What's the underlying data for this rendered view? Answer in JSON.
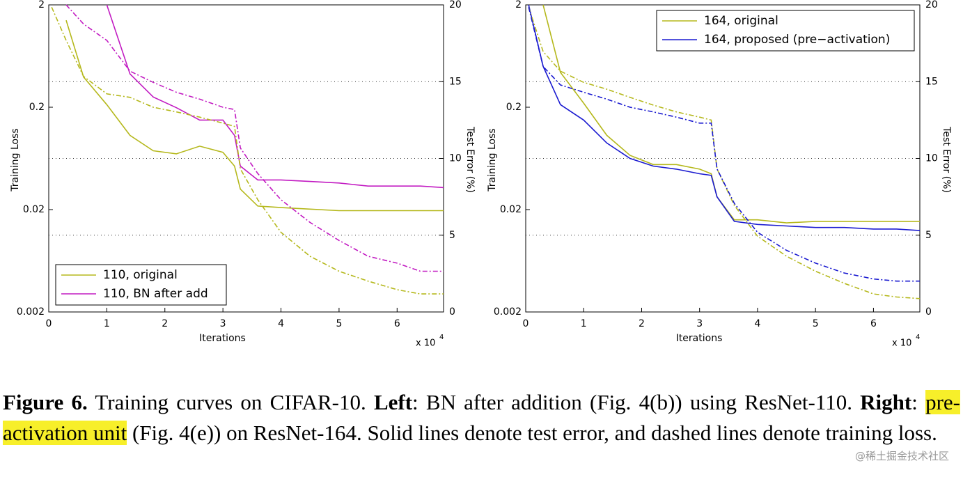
{
  "chart_data": [
    {
      "type": "line",
      "xlabel": "Iterations",
      "ylabel": "Training Loss",
      "y2label": "Test Error (%)",
      "xmultiplier": "x 10",
      "xmultiplier_exp": "4",
      "xlim": [
        0,
        6.8
      ],
      "xticks": [
        0,
        1,
        2,
        3,
        4,
        5,
        6
      ],
      "ylim": [
        0.002,
        2
      ],
      "yticks": [
        0.002,
        0.02,
        0.2,
        2
      ],
      "ylog": true,
      "y2lim": [
        0,
        20
      ],
      "y2ticks": [
        0,
        5,
        10,
        15,
        20
      ],
      "grid": true,
      "legend": "lower left",
      "x": [
        0.05,
        0.3,
        0.6,
        1.0,
        1.4,
        1.8,
        2.2,
        2.6,
        3.0,
        3.2,
        3.3,
        3.6,
        4.0,
        4.5,
        5.0,
        5.5,
        6.0,
        6.4,
        6.8
      ],
      "series": [
        {
          "name": "110, original",
          "color": "#b5b81c",
          "axis": "y2",
          "linestyle": "solid",
          "values": [
            null,
            19,
            15.3,
            13.5,
            11.5,
            10.5,
            10.3,
            10.8,
            10.4,
            9.5,
            8,
            6.9,
            6.8,
            6.7,
            6.6,
            6.6,
            6.6,
            6.6,
            6.6
          ]
        },
        {
          "name": "110, BN after add",
          "color": "#c21bc2",
          "axis": "y2",
          "linestyle": "solid",
          "values": [
            null,
            null,
            null,
            20,
            15.5,
            14,
            13.3,
            12.5,
            12.5,
            11.5,
            9.5,
            8.6,
            8.6,
            8.5,
            8.4,
            8.2,
            8.2,
            8.2,
            8.1
          ]
        },
        {
          "color": "#b5b81c",
          "axis": "y",
          "linestyle": "dashed",
          "values": [
            1.9,
            0.9,
            0.4,
            0.27,
            0.25,
            0.2,
            0.18,
            0.16,
            0.14,
            0.13,
            0.05,
            0.025,
            0.012,
            0.007,
            0.005,
            0.004,
            0.0033,
            0.003,
            0.003
          ]
        },
        {
          "color": "#c21bc2",
          "axis": "y",
          "linestyle": "dashed",
          "values": [
            null,
            2,
            1.3,
            0.9,
            0.45,
            0.35,
            0.28,
            0.24,
            0.2,
            0.19,
            0.08,
            0.045,
            0.025,
            0.015,
            0.01,
            0.007,
            0.006,
            0.005,
            0.005
          ]
        }
      ]
    },
    {
      "type": "line",
      "xlabel": "Iterations",
      "ylabel": "Training Loss",
      "y2label": "Test Error (%)",
      "xmultiplier": "x 10",
      "xmultiplier_exp": "4",
      "xlim": [
        0,
        6.8
      ],
      "xticks": [
        0,
        1,
        2,
        3,
        4,
        5,
        6
      ],
      "ylim": [
        0.002,
        2
      ],
      "yticks": [
        0.002,
        0.02,
        0.2,
        2
      ],
      "ylog": true,
      "y2lim": [
        0,
        20
      ],
      "y2ticks": [
        0,
        5,
        10,
        15,
        20
      ],
      "grid": true,
      "legend": "upper right",
      "x": [
        0.05,
        0.3,
        0.6,
        1.0,
        1.4,
        1.8,
        2.2,
        2.6,
        3.0,
        3.2,
        3.3,
        3.6,
        4.0,
        4.5,
        5.0,
        5.5,
        6.0,
        6.4,
        6.8
      ],
      "series": [
        {
          "name": "164, original",
          "color": "#b5b81c",
          "axis": "y2",
          "linestyle": "solid",
          "values": [
            null,
            20,
            15.6,
            13.6,
            11.5,
            10.2,
            9.6,
            9.6,
            9.3,
            9.0,
            7.5,
            6.0,
            6.0,
            5.8,
            5.9,
            5.9,
            5.9,
            5.9,
            5.9
          ]
        },
        {
          "name": "164, proposed (pre−activation)",
          "color": "#1a1ad0",
          "axis": "y2",
          "linestyle": "solid",
          "values": [
            20,
            16,
            13.5,
            12.5,
            11.0,
            10.0,
            9.5,
            9.3,
            9.0,
            8.9,
            7.5,
            5.9,
            5.7,
            5.6,
            5.5,
            5.5,
            5.4,
            5.4,
            5.3
          ]
        },
        {
          "color": "#b5b81c",
          "axis": "y",
          "linestyle": "dashed",
          "values": [
            1.9,
            0.7,
            0.45,
            0.35,
            0.3,
            0.25,
            0.21,
            0.18,
            0.16,
            0.15,
            0.05,
            0.022,
            0.011,
            0.007,
            0.005,
            0.0038,
            0.003,
            0.0028,
            0.0027
          ]
        },
        {
          "color": "#1a1ad0",
          "axis": "y",
          "linestyle": "dashed",
          "values": [
            1.9,
            0.5,
            0.33,
            0.28,
            0.24,
            0.2,
            0.18,
            0.16,
            0.14,
            0.14,
            0.05,
            0.023,
            0.012,
            0.008,
            0.006,
            0.0048,
            0.0042,
            0.004,
            0.004
          ]
        }
      ]
    }
  ],
  "caption": [
    {
      "text": "Figure 6.",
      "bold": true
    },
    {
      "text": " Training curves on CIFAR-10. "
    },
    {
      "text": "Left",
      "bold": true
    },
    {
      "text": ": BN after addition (Fig. 4(b)) using ResNet-110. "
    },
    {
      "text": "Right",
      "bold": true
    },
    {
      "text": ": "
    },
    {
      "text": "pre-activation unit",
      "highlight": true
    },
    {
      "text": " (Fig. 4(e)) on ResNet-164. Solid lines denote test error, and dashed lines denote training loss."
    }
  ],
  "watermark": "@稀土掘金技术社区"
}
